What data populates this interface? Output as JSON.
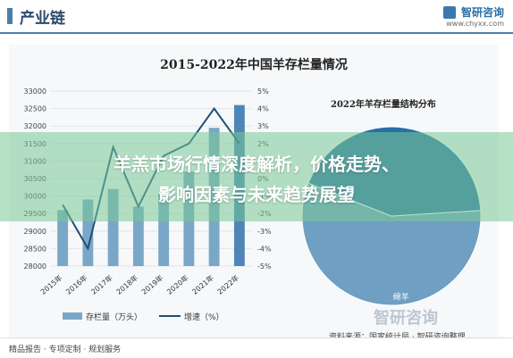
{
  "header": {
    "title": "产业链",
    "brand_name": "智研咨询",
    "brand_url": "www.chyxx.com"
  },
  "chart_title": "2015-2022年中国羊存栏量情况",
  "pie_title": "2022年羊存栏量结构分布",
  "overlay": {
    "line1": "羊羔市场行情深度解析，价格走势、",
    "line2": "影响因素与未来趋势展望"
  },
  "footer": {
    "left": "精品报告 · 专项定制 · 规划服务",
    "right": "",
    "source": "资料来源：国家统计局 · 智研咨询整理",
    "watermark": "智研咨询"
  },
  "colors": {
    "bar": "#7aa7c7",
    "bar_highlight": "#4d86b6",
    "line": "#1f4e79",
    "pie_main": "#6f9fc2",
    "pie_other": "#2a6fa6"
  },
  "chart_data": [
    {
      "type": "bar",
      "categories": [
        "2015年",
        "2016年",
        "2017年",
        "2018年",
        "2019年",
        "2020年",
        "2021年",
        "2022年"
      ],
      "series": [
        {
          "name": "存栏量（万头）",
          "values": [
            29600,
            29900,
            30200,
            29700,
            30100,
            30700,
            31950,
            32600
          ]
        },
        {
          "name": "增速（%）",
          "values": [
            -1.5,
            -4.0,
            1.8,
            -1.6,
            1.3,
            2.0,
            4.0,
            2.0
          ]
        }
      ],
      "ylim": [
        28000,
        33000
      ],
      "y_ticks": [
        "28000",
        "28500",
        "29000",
        "29500",
        "30000",
        "30500",
        "31000",
        "31500",
        "32000",
        "32500",
        "33000"
      ],
      "y2lim": [
        -5,
        5
      ],
      "y2_ticks": [
        "-5%",
        "-4%",
        "-3%",
        "-2%",
        "-1%",
        "0%",
        "1%",
        "2%",
        "3%",
        "4%",
        "5%"
      ],
      "legend_placement": "bottom"
    },
    {
      "type": "pie",
      "labels": [
        "绵羊",
        ""
      ],
      "values": [
        57,
        43
      ]
    }
  ]
}
